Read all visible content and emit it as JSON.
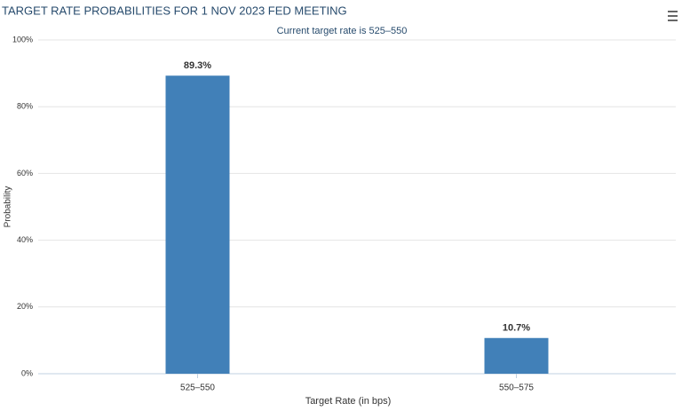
{
  "chart_data": {
    "type": "bar",
    "title": "TARGET RATE PROBABILITIES FOR 1 NOV 2023 FED MEETING",
    "subtitle": "Current target rate is 525–550",
    "x_label": "Target Rate (in bps)",
    "y_label": "Probability",
    "categories": [
      "525–550",
      "550–575"
    ],
    "values": [
      89.3,
      10.7
    ],
    "value_labels": [
      "89.3%",
      "10.7%"
    ],
    "color": "#4180b8",
    "ylim": [
      0,
      100
    ],
    "yticks": [
      {
        "value": 0,
        "label": "0%"
      },
      {
        "value": 20,
        "label": "20%"
      },
      {
        "value": 40,
        "label": "40%"
      },
      {
        "value": 60,
        "label": "60%"
      },
      {
        "value": 80,
        "label": "80%"
      },
      {
        "value": 100,
        "label": "100%"
      }
    ],
    "grid": true
  }
}
